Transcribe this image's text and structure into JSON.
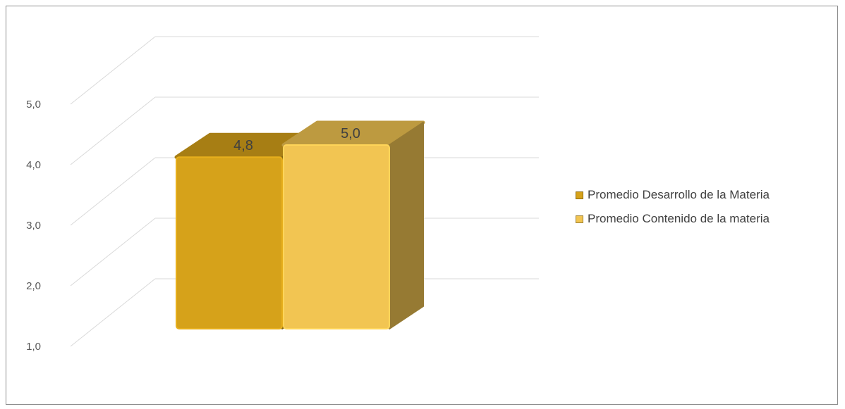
{
  "chart_data": {
    "type": "bar",
    "title": "",
    "xlabel": "",
    "ylabel": "",
    "ylim": [
      1,
      5
    ],
    "ytick_labels": [
      "1,0",
      "2,0",
      "3,0",
      "4,0",
      "5,0"
    ],
    "grid": true,
    "legend_position": "right",
    "series": [
      {
        "name": "Promedio Desarrollo de la Materia",
        "value": 4.8,
        "label": "4,8",
        "color": "#D6A21A"
      },
      {
        "name": "Promedio Contenido de la materia",
        "value": 5.0,
        "label": "5,0",
        "color": "#F2C552"
      }
    ]
  }
}
